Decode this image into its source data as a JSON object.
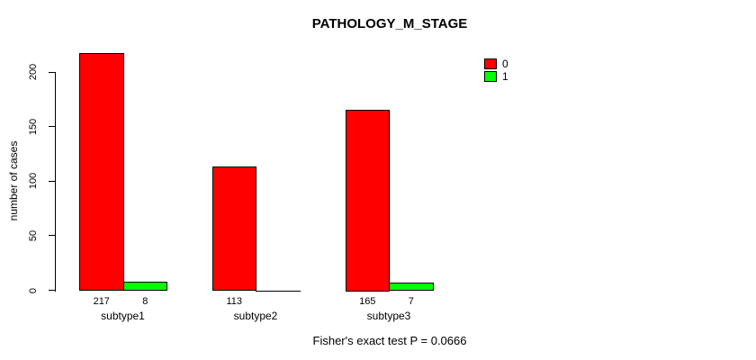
{
  "figure": {
    "title": "PATHOLOGY_M_STAGE",
    "y_axis_label": "number of cases",
    "footer_annotation": "Fisher's exact test P = 0.0666"
  },
  "legend": {
    "items": [
      {
        "label": "0",
        "color": "#FF0000"
      },
      {
        "label": "1",
        "color": "#00FF00"
      }
    ]
  },
  "chart_data": {
    "type": "bar",
    "title": "PATHOLOGY_M_STAGE",
    "xlabel": "",
    "ylabel": "number of cases",
    "categories": [
      "subtype1",
      "subtype2",
      "subtype3"
    ],
    "series": [
      {
        "name": "0",
        "color": "#FF0000",
        "values": [
          217,
          113,
          165
        ]
      },
      {
        "name": "1",
        "color": "#00FF00",
        "values": [
          8,
          0,
          7
        ]
      }
    ],
    "bar_count_labels": [
      [
        "217",
        "8"
      ],
      [
        "113",
        ""
      ],
      [
        "165",
        "7"
      ]
    ],
    "yticks": [
      0,
      50,
      100,
      150,
      200
    ],
    "ylim": [
      0,
      220
    ],
    "grid": false,
    "legend_position": "top-right",
    "annotation": "Fisher's exact test P = 0.0666"
  }
}
